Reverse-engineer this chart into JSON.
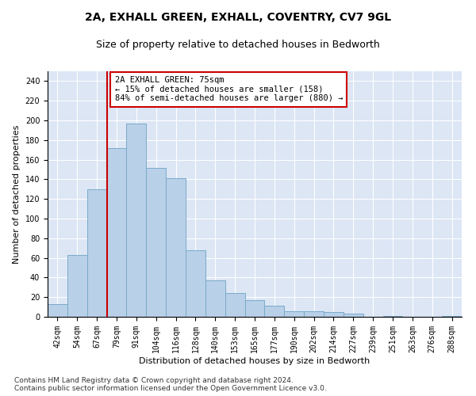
{
  "title": "2A, EXHALL GREEN, EXHALL, COVENTRY, CV7 9GL",
  "subtitle": "Size of property relative to detached houses in Bedworth",
  "xlabel": "Distribution of detached houses by size in Bedworth",
  "ylabel": "Number of detached properties",
  "categories": [
    "42sqm",
    "54sqm",
    "67sqm",
    "79sqm",
    "91sqm",
    "104sqm",
    "116sqm",
    "128sqm",
    "140sqm",
    "153sqm",
    "165sqm",
    "177sqm",
    "190sqm",
    "202sqm",
    "214sqm",
    "227sqm",
    "239sqm",
    "251sqm",
    "263sqm",
    "276sqm",
    "288sqm"
  ],
  "values": [
    13,
    63,
    130,
    172,
    197,
    152,
    141,
    68,
    37,
    24,
    17,
    11,
    6,
    6,
    5,
    3,
    0,
    1,
    0,
    0,
    1
  ],
  "bar_color": "#b8d0e8",
  "bar_edge_color": "#7aaac8",
  "vline_x": 2.5,
  "vline_color": "#cc0000",
  "annotation_text": "2A EXHALL GREEN: 75sqm\n← 15% of detached houses are smaller (158)\n84% of semi-detached houses are larger (880) →",
  "annotation_box_color": "#ffffff",
  "annotation_box_edge_color": "#cc0000",
  "ylim": [
    0,
    250
  ],
  "yticks": [
    0,
    20,
    40,
    60,
    80,
    100,
    120,
    140,
    160,
    180,
    200,
    220,
    240
  ],
  "background_color": "#dce6f5",
  "footer_text": "Contains HM Land Registry data © Crown copyright and database right 2024.\nContains public sector information licensed under the Open Government Licence v3.0.",
  "title_fontsize": 10,
  "subtitle_fontsize": 9,
  "xlabel_fontsize": 8,
  "ylabel_fontsize": 8,
  "annotation_fontsize": 7.5,
  "tick_fontsize": 7,
  "footer_fontsize": 6.5
}
